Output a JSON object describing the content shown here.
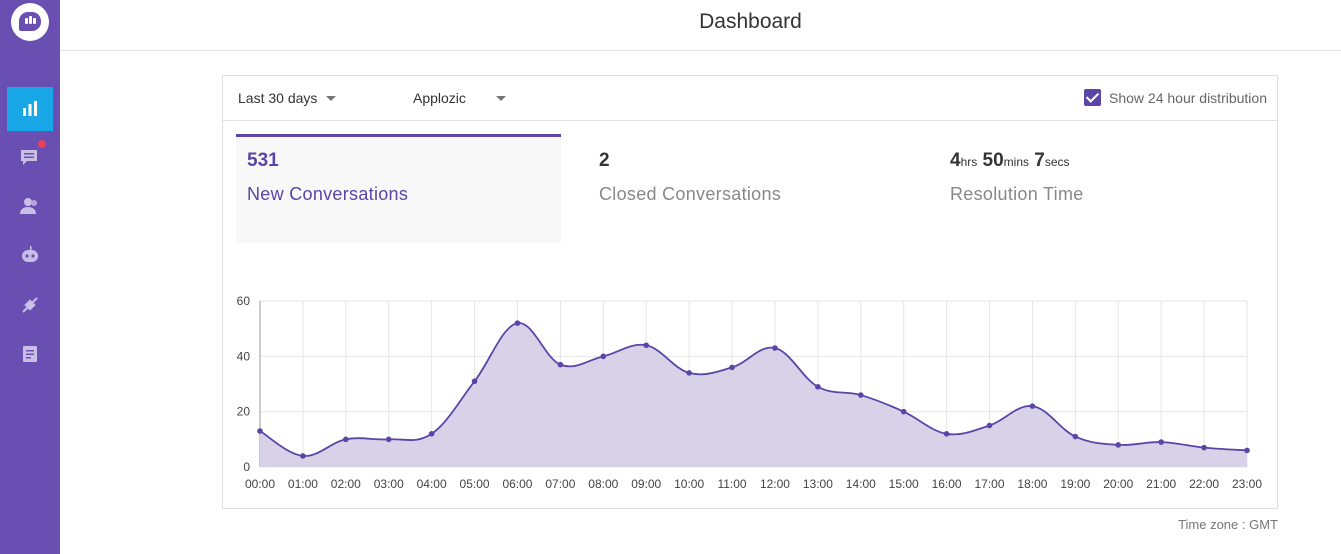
{
  "header": {
    "title": "Dashboard"
  },
  "sidebar": {
    "items": [
      {
        "icon": "bar-chart-icon",
        "active": true
      },
      {
        "icon": "conversations-icon",
        "active": false,
        "notification": true
      },
      {
        "icon": "users-icon",
        "active": false
      },
      {
        "icon": "bot-icon",
        "active": false
      },
      {
        "icon": "integrations-icon",
        "active": false
      },
      {
        "icon": "reports-icon",
        "active": false
      }
    ]
  },
  "filters": {
    "date_range": "Last 30 days",
    "app": "Applozic",
    "show_24h_label": "Show 24 hour distribution",
    "show_24h_checked": true
  },
  "metrics": {
    "new": {
      "value": "531",
      "label": "New Conversations"
    },
    "closed": {
      "value": "2",
      "label": "Closed Conversations"
    },
    "resolution": {
      "hrs": "4",
      "hrs_unit": "hrs",
      "mins": "50",
      "mins_unit": "mins",
      "secs": "7",
      "secs_unit": "secs",
      "label": "Resolution Time"
    }
  },
  "chart_data": {
    "type": "area",
    "x": [
      "00:00",
      "01:00",
      "02:00",
      "03:00",
      "04:00",
      "05:00",
      "06:00",
      "07:00",
      "08:00",
      "09:00",
      "10:00",
      "11:00",
      "12:00",
      "13:00",
      "14:00",
      "15:00",
      "16:00",
      "17:00",
      "18:00",
      "19:00",
      "20:00",
      "21:00",
      "22:00",
      "23:00"
    ],
    "series": [
      {
        "values": [
          13,
          4,
          10,
          10,
          12,
          31,
          52,
          37,
          40,
          44,
          34,
          36,
          43,
          29,
          26,
          20,
          12,
          15,
          22,
          11,
          8,
          9,
          7,
          6
        ]
      }
    ],
    "yticks": [
      0,
      20,
      40,
      60
    ],
    "ylim": [
      0,
      60
    ],
    "grid": true,
    "colors": {
      "line": "#5b45a6",
      "fill": "#d6d0e8"
    }
  },
  "footer": {
    "timezone": "Time zone : GMT"
  },
  "colors": {
    "brand": "#6a4fb3",
    "accent": "#5b45a6",
    "active_nav": "#1aa7e8"
  }
}
